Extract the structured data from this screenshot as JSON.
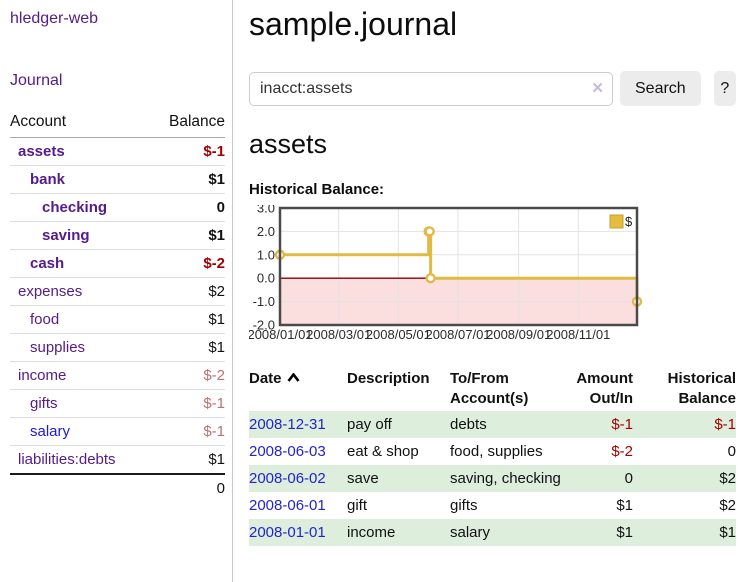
{
  "sidebar": {
    "app_title": "hledger-web",
    "journal_link": "Journal",
    "accounts_header": {
      "account": "Account",
      "balance": "Balance"
    },
    "accounts": [
      {
        "name": "assets",
        "balance": "$-1"
      },
      {
        "name": "bank",
        "balance": "$1"
      },
      {
        "name": "checking",
        "balance": "0"
      },
      {
        "name": "saving",
        "balance": "$1"
      },
      {
        "name": "cash",
        "balance": "$-2"
      },
      {
        "name": "expenses",
        "balance": "$2"
      },
      {
        "name": "food",
        "balance": "$1"
      },
      {
        "name": "supplies",
        "balance": "$1"
      },
      {
        "name": "income",
        "balance": "$-2"
      },
      {
        "name": "gifts",
        "balance": "$-1"
      },
      {
        "name": "salary",
        "balance": "$-1"
      },
      {
        "name": "liabilities:debts",
        "balance": "$1"
      }
    ],
    "total": "0"
  },
  "header": {
    "title": "sample.journal"
  },
  "search": {
    "query": "inacct:assets",
    "clear_icon": "✕",
    "button_label": "Search",
    "help_label": "?"
  },
  "account_page": {
    "title": "assets",
    "chart_label": "Historical Balance:"
  },
  "chart_data": {
    "type": "line",
    "step": true,
    "title": "Historical Balance",
    "legend": {
      "label": "$",
      "position": "top-right"
    },
    "xlim_days": [
      0,
      365
    ],
    "ylim": [
      -2,
      3
    ],
    "y_ticks": [
      3.0,
      2.0,
      1.0,
      0.0,
      -1.0,
      -2.0
    ],
    "x_ticks": [
      {
        "label": "2008/01/01",
        "day": 0
      },
      {
        "label": "2008/03/01",
        "day": 60
      },
      {
        "label": "2008/05/01",
        "day": 121
      },
      {
        "label": "2008/07/01",
        "day": 182
      },
      {
        "label": "2008/09/01",
        "day": 244
      },
      {
        "label": "2008/11/01",
        "day": 305
      }
    ],
    "series": [
      {
        "name": "$",
        "points": [
          {
            "date": "2008-01-01",
            "day": 0,
            "value": 1
          },
          {
            "date": "2008-06-01",
            "day": 152,
            "value": 2
          },
          {
            "date": "2008-06-02",
            "day": 153,
            "value": 2
          },
          {
            "date": "2008-06-03",
            "day": 154,
            "value": 0
          },
          {
            "date": "2008-12-31",
            "day": 365,
            "value": -1
          }
        ]
      }
    ],
    "negative_region": true,
    "colors": {
      "line": "#e2b945",
      "marker_fill": "#ffffff",
      "negative_fill": "#fbdede",
      "zero_line": "#8b0000",
      "grid": "#e3e3e3",
      "border": "#4a4a4a",
      "legend_fill": "#e6bc3e",
      "legend_border": "#c79f2e",
      "tick_text": "#2b2b2b"
    }
  },
  "register": {
    "columns": {
      "date": "Date",
      "description": "Description",
      "accounts": "To/From Account(s)",
      "amount": "Amount Out/In",
      "historical": "Historical Balance"
    },
    "rows": [
      {
        "date": "2008-12-31",
        "description": "pay off",
        "accounts": "debts",
        "amount": "$-1",
        "historical": "$-1"
      },
      {
        "date": "2008-06-03",
        "description": "eat & shop",
        "accounts": "food, supplies",
        "amount": "$-2",
        "historical": "0"
      },
      {
        "date": "2008-06-02",
        "description": "save",
        "accounts": "saving, checking",
        "amount": "0",
        "historical": "$2"
      },
      {
        "date": "2008-06-01",
        "description": "gift",
        "accounts": "gifts",
        "amount": "$1",
        "historical": "$2"
      },
      {
        "date": "2008-01-01",
        "description": "income",
        "accounts": "salary",
        "amount": "$1",
        "historical": "$1"
      }
    ]
  },
  "theme": {
    "link_purple": "#551a8b",
    "link_blue": "#2323cc",
    "negative_red": "#a40000",
    "negative_muted": "#c06f6f",
    "row_stripe_green": "#ddeedd"
  }
}
